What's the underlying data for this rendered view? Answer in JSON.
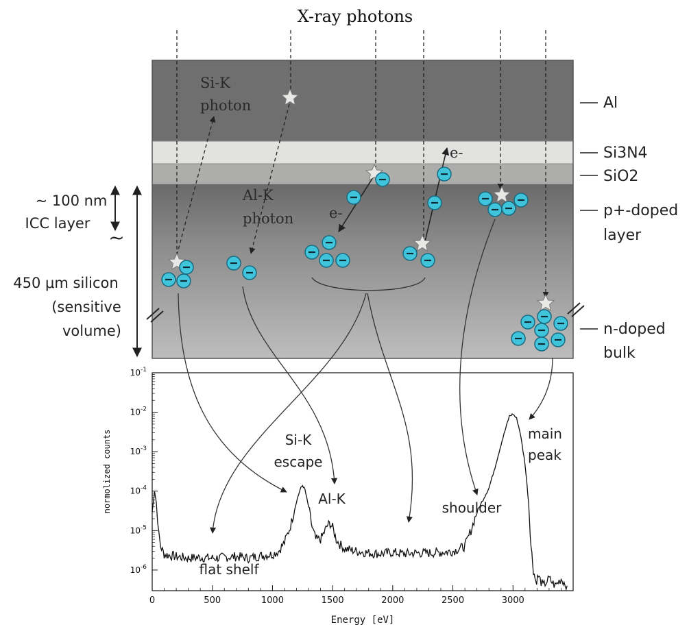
{
  "title": "X-ray photons",
  "layers": {
    "al": "Al",
    "si3n4": "Si3N4",
    "sio2": "SiO2",
    "p_doped_1": "p+-doped",
    "p_doped_2": "layer",
    "n_doped_1": "n-doped",
    "n_doped_2": "bulk"
  },
  "left_labels": {
    "icc_1": "~ 100 nm",
    "icc_2": "ICC layer",
    "tilde": "~",
    "silicon_1": "450 μm silicon",
    "silicon_2": "(sensitive",
    "silicon_3": "volume)"
  },
  "photon_labels": {
    "sik_1": "Si-K",
    "sik_2": "photon",
    "alk_1": "Al-K",
    "alk_2": "photon",
    "electron": "e-",
    "electron_2": "e-"
  },
  "spectrum_labels": {
    "sik_escape_1": "Si-K",
    "sik_escape_2": "escape",
    "alk": "Al-K",
    "shoulder": "shoulder",
    "main_1": "main",
    "main_2": "peak",
    "flat_shelf": "flat shelf"
  },
  "chart_data": {
    "type": "line",
    "xlabel": "Energy [eV]",
    "ylabel": "normolized counts",
    "xlim": [
      0,
      3500
    ],
    "ylim": [
      3e-07,
      0.1
    ],
    "yscale": "log",
    "x_ticks": [
      "0",
      "500",
      "1000",
      "1500",
      "2000",
      "2500",
      "3000"
    ],
    "y_ticks": [
      "10^-6",
      "10^-5",
      "10^-4",
      "10^-3",
      "10^-2",
      "10^-1"
    ],
    "series": [
      {
        "x": [
          0,
          20,
          35,
          45,
          55,
          70,
          100,
          200,
          300,
          400,
          500,
          600,
          700,
          800,
          900,
          1000,
          1050,
          1100,
          1150,
          1200,
          1230,
          1250,
          1270,
          1300,
          1330,
          1360,
          1400,
          1430,
          1460,
          1480,
          1500,
          1530,
          1560,
          1600,
          1700,
          1800,
          1900,
          2000,
          2100,
          2200,
          2300,
          2400,
          2500,
          2600,
          2650,
          2700,
          2750,
          2800,
          2850,
          2900,
          2940,
          2970,
          3000,
          3030,
          3060,
          3100,
          3130,
          3150,
          3170,
          3190,
          3210,
          3250,
          3300,
          3350,
          3400,
          3450
        ],
        "y": [
          3e-05,
          0.0001,
          5e-05,
          2e-05,
          8e-06,
          4e-06,
          2.5e-06,
          2.2e-06,
          2e-06,
          2.1e-06,
          2e-06,
          2.1e-06,
          2.2e-06,
          2e-06,
          2.3e-06,
          2.5e-06,
          3e-06,
          5e-06,
          1.3e-05,
          5.5e-05,
          0.00011,
          0.00014,
          0.00011,
          4e-05,
          1.2e-05,
          6e-06,
          6e-06,
          9e-06,
          1.4e-05,
          1.5e-05,
          1.2e-05,
          6e-06,
          4.5e-06,
          3.5e-06,
          3e-06,
          2.7e-06,
          2.6e-06,
          2.8e-06,
          2.6e-06,
          2.7e-06,
          2.7e-06,
          2.8e-06,
          3e-06,
          4e-06,
          1e-05,
          3e-05,
          6e-05,
          0.00012,
          0.0004,
          0.0015,
          0.004,
          0.008,
          0.009,
          0.007,
          0.003,
          0.0005,
          5e-05,
          4e-06,
          1e-06,
          5e-07,
          7e-07,
          4e-07,
          6e-07,
          4e-07,
          6e-07,
          4e-07
        ]
      }
    ]
  },
  "colors": {
    "electron_fill": "#40c4dc",
    "electron_stroke": "#1a6a80",
    "al_layer": "#6f6f6f",
    "si3n4_layer": "#e2e2e0",
    "sio2_layer": "#adadab"
  }
}
